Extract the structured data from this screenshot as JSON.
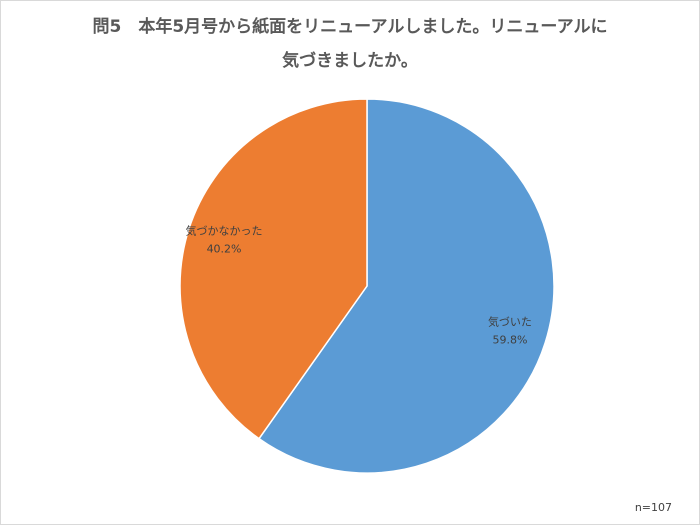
{
  "chart_data": {
    "type": "pie",
    "title": "問5　本年5月号から紙面をリニューアルしました。リニューアルに気づきましたか。",
    "categories": [
      "気づいた",
      "気づかなかった"
    ],
    "values": [
      59.8,
      40.2
    ],
    "value_labels": [
      "59.8%",
      "40.2%"
    ],
    "colors": [
      "#5b9bd5",
      "#ed7d31"
    ],
    "annotation": "n=107"
  }
}
